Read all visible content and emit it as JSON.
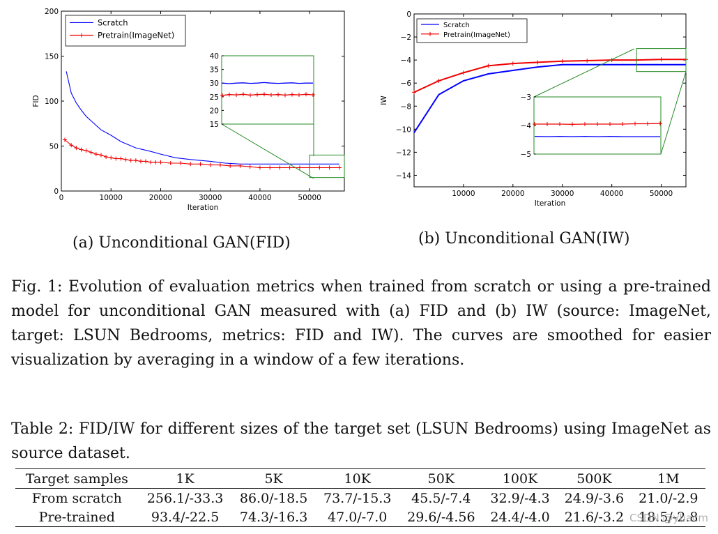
{
  "figure": {
    "subcaption_a": "(a) Unconditional GAN(FID)",
    "subcaption_b": "(b) Unconditional GAN(IW)",
    "caption": "Fig. 1: Evolution of evaluation metrics when trained from scratch or using a pre-trained model for unconditional GAN measured with (a) FID and (b) IW (source: ImageNet, target: LSUN Bedrooms, metrics: FID and IW). The curves are smoothed for easier visualization by averaging in a window of a few iterations."
  },
  "table": {
    "caption": "Table 2: FID/IW for different sizes of the target set (LSUN Bedrooms) using ImageNet as source dataset.",
    "headers": [
      "Target samples",
      "1K",
      "5K",
      "10K",
      "50K",
      "100K",
      "500K",
      "1M"
    ],
    "rows": [
      [
        "From scratch",
        "256.1/-33.3",
        "86.0/-18.5",
        "73.7/-15.3",
        "45.5/-7.4",
        "32.9/-4.3",
        "24.9/-3.6",
        "21.0/-2.9"
      ],
      [
        "Pre-trained",
        "93.4/-22.5",
        "74.3/-16.3",
        "47.0/-7.0",
        "29.6/-4.56",
        "24.4/-4.0",
        "21.6/-3.2",
        "18.5/-2.8"
      ]
    ]
  },
  "watermark": "CSDN @ybacm",
  "colors": {
    "scratch": "#0000ff",
    "pretrain": "#ee0000",
    "inset": "#228822"
  },
  "chart_data": [
    {
      "type": "line",
      "title": "",
      "xlabel": "Iteration",
      "ylabel": "FID",
      "xlim": [
        0,
        57000
      ],
      "ylim": [
        0,
        200
      ],
      "xticks": [
        0,
        10000,
        20000,
        30000,
        40000,
        50000
      ],
      "yticks": [
        0,
        50,
        100,
        150,
        200
      ],
      "legend": "top-left",
      "series": [
        {
          "name": "Scratch",
          "x": [
            1000,
            2000,
            3000,
            4000,
            5000,
            6000,
            8000,
            10000,
            12000,
            15000,
            18000,
            20000,
            23000,
            26000,
            30000,
            33000,
            36000,
            40000,
            45000,
            50000,
            56000
          ],
          "y": [
            133,
            109,
            98,
            90,
            83,
            78,
            68,
            62,
            55,
            48,
            44,
            41,
            37,
            35,
            33,
            31,
            30,
            30,
            30,
            30,
            30
          ]
        },
        {
          "name": "Pretrain(ImageNet)",
          "x": [
            700,
            2000,
            3000,
            4000,
            5000,
            6000,
            7000,
            8000,
            9000,
            10000,
            11000,
            12000,
            13000,
            14000,
            15000,
            16000,
            17000,
            18000,
            19000,
            20000,
            22000,
            24000,
            26000,
            28000,
            30000,
            32000,
            34000,
            36000,
            38000,
            40000,
            42000,
            44000,
            46000,
            48000,
            50000,
            52000,
            54000,
            56000
          ],
          "y": [
            57,
            51,
            48,
            46,
            45,
            43,
            41,
            40,
            38,
            37,
            36,
            36,
            35,
            34,
            34,
            33,
            33,
            32,
            32,
            32,
            31,
            31,
            30,
            30,
            29,
            29,
            28,
            28,
            27,
            26,
            26,
            26,
            26,
            26,
            26,
            26,
            26,
            26
          ]
        }
      ],
      "inset": {
        "xlim": [
          50000,
          57000
        ],
        "ylim": [
          15,
          40
        ],
        "yticks": [
          15,
          20,
          25,
          30,
          35,
          40
        ],
        "scratch": [
          30,
          29.8,
          30,
          30.1,
          29.9,
          30,
          30.2,
          30,
          29.9,
          30,
          30.1,
          29.9,
          30,
          30
        ],
        "pretrain": [
          25.5,
          25.8,
          25.7,
          25.9,
          25.6,
          25.8,
          25.9,
          25.7,
          25.8,
          25.6,
          25.8,
          25.7,
          25.9,
          25.7
        ]
      }
    },
    {
      "type": "line",
      "title": "",
      "xlabel": "Iteration",
      "ylabel": "IW",
      "xlim": [
        0,
        55000
      ],
      "ylim": [
        -15,
        0
      ],
      "xticks": [
        10000,
        20000,
        30000,
        40000,
        50000
      ],
      "yticks": [
        0,
        -2,
        -4,
        -6,
        -8,
        -10,
        -12,
        -14
      ],
      "legend": "top-left",
      "series": [
        {
          "name": "Scratch",
          "x": [
            0,
            5000,
            10000,
            15000,
            20000,
            25000,
            30000,
            35000,
            40000,
            45000,
            50000,
            55000
          ],
          "y": [
            -10.3,
            -7.0,
            -5.8,
            -5.2,
            -4.9,
            -4.6,
            -4.4,
            -4.4,
            -4.4,
            -4.4,
            -4.4,
            -4.4
          ]
        },
        {
          "name": "Pretrain(ImageNet)",
          "x": [
            0,
            5000,
            10000,
            15000,
            20000,
            25000,
            30000,
            35000,
            40000,
            45000,
            50000,
            55000
          ],
          "y": [
            -6.8,
            -5.8,
            -5.1,
            -4.5,
            -4.3,
            -4.2,
            -4.1,
            -4.05,
            -4.0,
            -4.0,
            -3.95,
            -3.95
          ]
        }
      ],
      "inset": {
        "xlim": [
          45000,
          55000
        ],
        "ylim": [
          -5,
          -3
        ],
        "yticks": [
          -3,
          -4,
          -5
        ],
        "scratch": [
          -4.38,
          -4.39,
          -4.38,
          -4.39,
          -4.38,
          -4.39,
          -4.38,
          -4.39,
          -4.39,
          -4.39,
          -4.39
        ],
        "pretrain": [
          -3.95,
          -3.95,
          -3.95,
          -3.96,
          -3.95,
          -3.95,
          -3.95,
          -3.95,
          -3.94,
          -3.94,
          -3.93
        ]
      }
    }
  ]
}
